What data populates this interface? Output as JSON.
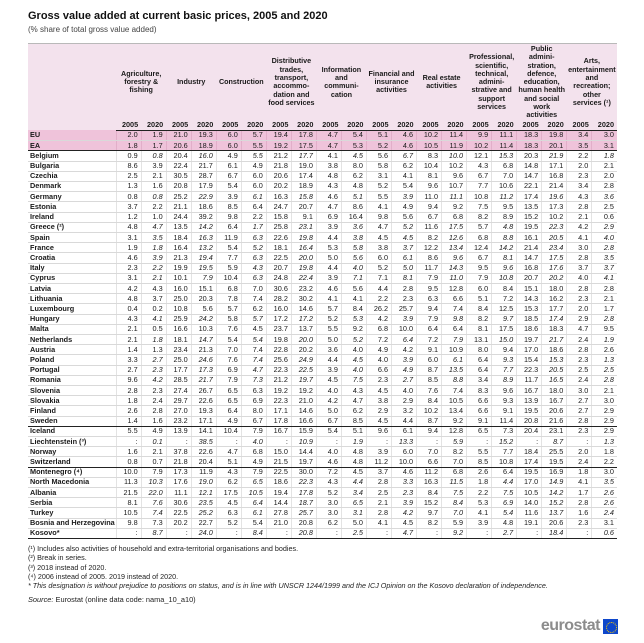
{
  "title": "Gross value added at current basic prices, 2005 and 2020",
  "subtitle": "(% share of total gross value added)",
  "year_headers": [
    "2005",
    "2020"
  ],
  "columns": [
    "Agriculture, forestry & fishing",
    "Industry",
    "Construction",
    "Distributive trades, transport, accommo­dation and food services",
    "Information and communi­cation",
    "Financial and insurance activities",
    "Real estate activities",
    "Professional, scientific, technical, admini­strative and support services",
    "Public admini­stration, defence, education, human health and social work activities",
    "Arts, entertain­ment and recreation; other services (¹)"
  ],
  "rows": [
    {
      "name": "EU",
      "highlight": true,
      "values": [
        "2.0",
        "1.9",
        "21.0",
        "19.3",
        "6.0",
        "5.7",
        "19.4",
        "17.8",
        "4.7",
        "5.4",
        "5.1",
        "4.6",
        "10.2",
        "11.4",
        "9.9",
        "11.1",
        "18.3",
        "19.8",
        "3.4",
        "3.0"
      ]
    },
    {
      "name": "EA",
      "highlight": true,
      "sep_after": true,
      "values": [
        "1.8",
        "1.7",
        "20.6",
        "18.9",
        "6.0",
        "5.5",
        "19.2",
        "17.5",
        "4.7",
        "5.3",
        "5.2",
        "4.6",
        "10.5",
        "11.9",
        "10.2",
        "11.4",
        "18.3",
        "20.1",
        "3.5",
        "3.1"
      ]
    },
    {
      "name": "Belgium",
      "italic2020": true,
      "values": [
        "0.9",
        "0.8",
        "20.4",
        "16.0",
        "4.9",
        "5.5",
        "21.2",
        "17.7",
        "4.1",
        "4.5",
        "5.6",
        "6.7",
        "8.3",
        "10.0",
        "12.1",
        "15.3",
        "20.3",
        "21.9",
        "2.2",
        "1.8"
      ]
    },
    {
      "name": "Bulgaria",
      "values": [
        "8.6",
        "3.9",
        "22.4",
        "21.7",
        "6.1",
        "4.9",
        "21.8",
        "19.0",
        "3.8",
        "8.0",
        "5.8",
        "6.2",
        "10.4",
        "10.2",
        "4.3",
        "6.8",
        "14.8",
        "17.1",
        "2.0",
        "2.1"
      ]
    },
    {
      "name": "Czechia",
      "values": [
        "2.5",
        "2.1",
        "30.5",
        "28.7",
        "6.7",
        "6.0",
        "20.6",
        "17.4",
        "4.8",
        "6.2",
        "3.1",
        "4.1",
        "8.1",
        "9.6",
        "6.7",
        "7.0",
        "14.7",
        "16.8",
        "2.3",
        "2.0"
      ]
    },
    {
      "name": "Denmark",
      "values": [
        "1.3",
        "1.6",
        "20.8",
        "17.9",
        "5.4",
        "6.0",
        "20.2",
        "18.9",
        "4.3",
        "4.8",
        "5.2",
        "5.4",
        "9.6",
        "10.7",
        "7.7",
        "10.6",
        "22.1",
        "21.4",
        "3.4",
        "2.8"
      ]
    },
    {
      "name": "Germany",
      "italic2020": true,
      "values": [
        "0.8",
        "0.8",
        "25.2",
        "22.9",
        "3.9",
        "6.1",
        "16.3",
        "15.8",
        "4.6",
        "5.1",
        "5.5",
        "3.9",
        "11.0",
        "11.1",
        "10.8",
        "11.2",
        "17.4",
        "19.6",
        "4.3",
        "3.6"
      ]
    },
    {
      "name": "Estonia",
      "values": [
        "3.7",
        "2.2",
        "21.1",
        "18.6",
        "8.5",
        "6.4",
        "24.7",
        "20.7",
        "4.7",
        "8.6",
        "4.1",
        "4.9",
        "9.4",
        "9.2",
        "7.5",
        "9.5",
        "13.5",
        "17.3",
        "2.8",
        "2.5"
      ]
    },
    {
      "name": "Ireland",
      "values": [
        "1.2",
        "1.0",
        "24.4",
        "39.2",
        "9.8",
        "2.2",
        "15.8",
        "9.1",
        "6.9",
        "16.4",
        "9.8",
        "5.6",
        "6.7",
        "6.8",
        "8.2",
        "8.9",
        "15.2",
        "10.2",
        "2.1",
        "0.6"
      ]
    },
    {
      "name": "Greece (²)",
      "italic2020": true,
      "values": [
        "4.8",
        "4.7",
        "13.5",
        "14.2",
        "6.4",
        "1.7",
        "25.8",
        "23.1",
        "3.9",
        "3.6",
        "4.7",
        "5.2",
        "11.6",
        "17.5",
        "5.7",
        "4.8",
        "19.5",
        "22.3",
        "4.2",
        "2.9"
      ]
    },
    {
      "name": "Spain",
      "italic2020": true,
      "values": [
        "3.1",
        "3.5",
        "18.4",
        "16.3",
        "11.9",
        "6.3",
        "22.6",
        "19.8",
        "4.4",
        "3.8",
        "4.5",
        "4.5",
        "8.2",
        "12.6",
        "6.8",
        "8.8",
        "16.1",
        "20.5",
        "4.1",
        "4.0"
      ]
    },
    {
      "name": "France",
      "italic2020": true,
      "values": [
        "1.9",
        "1.8",
        "16.4",
        "13.2",
        "5.4",
        "5.2",
        "18.1",
        "16.4",
        "5.3",
        "5.8",
        "3.8",
        "3.7",
        "12.2",
        "13.4",
        "12.4",
        "14.2",
        "21.4",
        "23.4",
        "3.0",
        "2.8"
      ]
    },
    {
      "name": "Croatia",
      "italic2020": true,
      "values": [
        "4.6",
        "3.9",
        "21.3",
        "19.4",
        "7.7",
        "6.3",
        "22.5",
        "20.0",
        "5.0",
        "5.6",
        "6.0",
        "6.1",
        "8.6",
        "9.6",
        "6.7",
        "8.1",
        "14.7",
        "17.5",
        "2.8",
        "3.5"
      ]
    },
    {
      "name": "Italy",
      "italic2020": true,
      "values": [
        "2.3",
        "2.2",
        "19.9",
        "19.5",
        "5.9",
        "4.3",
        "20.7",
        "19.8",
        "4.4",
        "4.0",
        "5.2",
        "5.0",
        "11.7",
        "14.3",
        "9.5",
        "9.6",
        "16.8",
        "17.6",
        "3.7",
        "3.7"
      ]
    },
    {
      "name": "Cyprus",
      "italic2020": true,
      "values": [
        "3.1",
        "2.1",
        "10.1",
        "7.9",
        "10.4",
        "6.3",
        "24.8",
        "22.4",
        "3.9",
        "7.1",
        "7.1",
        "8.1",
        "7.9",
        "11.0",
        "7.9",
        "10.8",
        "20.7",
        "20.2",
        "4.0",
        "4.1"
      ]
    },
    {
      "name": "Latvia",
      "values": [
        "4.2",
        "4.3",
        "16.0",
        "15.1",
        "6.8",
        "7.0",
        "30.6",
        "23.2",
        "4.6",
        "5.6",
        "4.4",
        "2.8",
        "9.5",
        "12.8",
        "6.0",
        "8.4",
        "15.1",
        "18.0",
        "2.8",
        "2.8"
      ]
    },
    {
      "name": "Lithuania",
      "values": [
        "4.8",
        "3.7",
        "25.0",
        "20.3",
        "7.8",
        "7.4",
        "28.2",
        "30.2",
        "4.1",
        "4.1",
        "2.2",
        "2.3",
        "6.3",
        "6.6",
        "5.1",
        "7.2",
        "14.3",
        "16.2",
        "2.3",
        "2.1"
      ]
    },
    {
      "name": "Luxembourg",
      "values": [
        "0.4",
        "0.2",
        "10.8",
        "5.6",
        "5.7",
        "6.2",
        "16.0",
        "14.6",
        "5.7",
        "8.4",
        "26.2",
        "25.7",
        "9.4",
        "7.4",
        "8.4",
        "12.5",
        "15.3",
        "17.7",
        "2.0",
        "1.7"
      ]
    },
    {
      "name": "Hungary",
      "italic2020": true,
      "values": [
        "4.3",
        "4.1",
        "25.9",
        "24.2",
        "5.8",
        "5.7",
        "17.2",
        "17.2",
        "5.2",
        "5.3",
        "4.2",
        "3.9",
        "7.9",
        "9.8",
        "8.2",
        "9.7",
        "18.5",
        "17.4",
        "2.9",
        "2.8"
      ]
    },
    {
      "name": "Malta",
      "values": [
        "2.1",
        "0.5",
        "16.6",
        "10.3",
        "7.6",
        "4.5",
        "23.7",
        "13.7",
        "5.5",
        "9.2",
        "6.8",
        "10.0",
        "6.4",
        "6.4",
        "8.1",
        "17.5",
        "18.6",
        "18.3",
        "4.7",
        "9.5"
      ]
    },
    {
      "name": "Netherlands",
      "italic2020": true,
      "values": [
        "2.1",
        "1.8",
        "18.1",
        "14.7",
        "5.4",
        "5.4",
        "19.8",
        "20.0",
        "5.0",
        "5.2",
        "7.2",
        "6.4",
        "7.2",
        "7.9",
        "13.1",
        "15.0",
        "19.7",
        "21.7",
        "2.4",
        "1.9"
      ]
    },
    {
      "name": "Austria",
      "values": [
        "1.4",
        "1.3",
        "23.4",
        "21.3",
        "7.0",
        "7.4",
        "22.8",
        "20.2",
        "3.6",
        "4.0",
        "4.9",
        "4.2",
        "9.1",
        "10.9",
        "8.0",
        "9.4",
        "17.0",
        "18.6",
        "2.8",
        "2.6"
      ]
    },
    {
      "name": "Poland",
      "italic2020": true,
      "values": [
        "3.3",
        "2.7",
        "25.0",
        "24.6",
        "7.6",
        "7.4",
        "25.6",
        "24.9",
        "4.4",
        "4.5",
        "4.0",
        "3.9",
        "6.0",
        "6.1",
        "6.4",
        "9.3",
        "15.4",
        "15.3",
        "2.3",
        "1.3"
      ]
    },
    {
      "name": "Portugal",
      "italic2020": true,
      "values": [
        "2.7",
        "2.3",
        "17.7",
        "17.3",
        "6.9",
        "4.7",
        "22.3",
        "22.5",
        "3.9",
        "4.0",
        "6.6",
        "4.9",
        "8.7",
        "13.5",
        "6.4",
        "7.7",
        "22.3",
        "20.5",
        "2.5",
        "2.5"
      ]
    },
    {
      "name": "Romania",
      "italic2020": true,
      "values": [
        "9.6",
        "4.2",
        "28.5",
        "21.7",
        "7.9",
        "7.3",
        "21.2",
        "19.7",
        "4.5",
        "7.5",
        "2.3",
        "2.7",
        "8.5",
        "8.8",
        "3.4",
        "8.9",
        "11.7",
        "16.5",
        "2.4",
        "2.8"
      ]
    },
    {
      "name": "Slovenia",
      "values": [
        "2.8",
        "2.3",
        "27.4",
        "26.7",
        "6.5",
        "6.3",
        "19.2",
        "19.2",
        "4.0",
        "4.3",
        "4.5",
        "4.0",
        "7.6",
        "7.4",
        "8.3",
        "9.6",
        "16.7",
        "18.0",
        "3.0",
        "2.1"
      ]
    },
    {
      "name": "Slovakia",
      "values": [
        "1.8",
        "2.4",
        "29.7",
        "22.6",
        "6.5",
        "6.9",
        "22.3",
        "21.0",
        "4.2",
        "4.7",
        "3.8",
        "2.9",
        "8.4",
        "10.5",
        "6.6",
        "9.3",
        "13.9",
        "16.7",
        "2.7",
        "3.0"
      ]
    },
    {
      "name": "Finland",
      "values": [
        "2.6",
        "2.8",
        "27.0",
        "19.3",
        "6.4",
        "8.0",
        "17.1",
        "14.6",
        "5.0",
        "6.2",
        "2.9",
        "3.2",
        "10.2",
        "13.4",
        "6.6",
        "9.1",
        "19.5",
        "20.6",
        "2.7",
        "2.9"
      ]
    },
    {
      "name": "Sweden",
      "sep_after": true,
      "values": [
        "1.4",
        "1.6",
        "23.2",
        "17.1",
        "4.9",
        "6.7",
        "17.8",
        "16.6",
        "6.7",
        "8.5",
        "4.5",
        "4.4",
        "8.7",
        "9.2",
        "9.1",
        "11.4",
        "20.8",
        "21.6",
        "2.8",
        "2.9"
      ]
    },
    {
      "name": "Iceland",
      "values": [
        "5.5",
        "4.9",
        "13.9",
        "14.1",
        "10.4",
        "7.9",
        "16.7",
        "15.9",
        "5.4",
        "5.1",
        "9.6",
        "6.1",
        "9.4",
        "12.8",
        "6.5",
        "7.3",
        "20.4",
        "23.1",
        "2.3",
        "2.9"
      ]
    },
    {
      "name": "Liechtenstein (³)",
      "italic2020": true,
      "values": [
        ":",
        "0.1",
        ":",
        "38.5",
        ":",
        "4.0",
        ":",
        "10.9",
        ":",
        "1.9",
        ":",
        "13.3",
        ":",
        "5.9",
        ":",
        "15.2",
        ":",
        "8.7",
        ":",
        "1.3"
      ]
    },
    {
      "name": "Norway",
      "values": [
        "1.6",
        "2.1",
        "37.8",
        "22.6",
        "4.7",
        "6.8",
        "15.0",
        "14.4",
        "4.0",
        "4.8",
        "3.9",
        "6.0",
        "7.0",
        "8.2",
        "5.5",
        "7.7",
        "18.4",
        "25.5",
        "2.0",
        "1.8"
      ]
    },
    {
      "name": "Switzerland",
      "sep_after": true,
      "values": [
        "0.8",
        "0.7",
        "21.8",
        "20.4",
        "5.1",
        "4.9",
        "21.5",
        "19.7",
        "4.6",
        "4.8",
        "11.2",
        "10.0",
        "6.6",
        "7.0",
        "8.5",
        "10.8",
        "17.4",
        "19.5",
        "2.4",
        "2.2"
      ]
    },
    {
      "name": "Montenegro (⁴)",
      "values": [
        "10.0",
        "7.9",
        "17.3",
        "11.9",
        "4.3",
        "7.9",
        "22.5",
        "30.0",
        "7.2",
        "4.5",
        "3.7",
        "4.6",
        "11.2",
        "6.8",
        "2.6",
        "6.4",
        "19.5",
        "16.9",
        "1.8",
        "3.0"
      ]
    },
    {
      "name": "North Macedonia",
      "italic2020": true,
      "values": [
        "11.3",
        "10.3",
        "17.6",
        "19.0",
        "6.2",
        "6.5",
        "18.6",
        "22.3",
        "4.3",
        "4.4",
        "2.8",
        "3.3",
        "16.3",
        "11.5",
        "1.8",
        "4.4",
        "17.0",
        "14.9",
        "4.1",
        "3.5"
      ]
    },
    {
      "name": "Albania",
      "italic2020": true,
      "values": [
        "21.5",
        "22.0",
        "11.1",
        "12.1",
        "17.5",
        "10.5",
        "19.4",
        "17.8",
        "5.2",
        "3.4",
        "2.5",
        "2.3",
        "8.4",
        "7.5",
        "2.2",
        "7.5",
        "10.5",
        "14.2",
        "1.7",
        "2.6"
      ]
    },
    {
      "name": "Serbia",
      "italic2020": true,
      "values": [
        "8.1",
        "7.6",
        "30.6",
        "23.5",
        "4.5",
        "6.4",
        "14.4",
        "18.7",
        "3.0",
        "6.5",
        "2.1",
        "3.9",
        "15.2",
        "8.4",
        "5.3",
        "6.9",
        "14.0",
        "15.2",
        "2.8",
        "2.6"
      ]
    },
    {
      "name": "Turkey",
      "italic2020": true,
      "values": [
        "10.5",
        "7.4",
        "22.5",
        "25.2",
        "6.3",
        "6.1",
        "27.8",
        "25.7",
        "3.0",
        "3.1",
        "2.8",
        "4.2",
        "9.7",
        "7.0",
        "4.1",
        "5.4",
        "11.6",
        "13.7",
        "1.6",
        "2.4"
      ]
    },
    {
      "name": "Bosnia and Herzegovina",
      "values": [
        "9.8",
        "7.3",
        "20.2",
        "22.7",
        "5.2",
        "5.4",
        "21.0",
        "20.8",
        "6.2",
        "5.0",
        "4.1",
        "4.5",
        "8.2",
        "5.9",
        "3.9",
        "4.8",
        "19.1",
        "20.6",
        "2.3",
        "3.1"
      ]
    },
    {
      "name": "Kosovo*",
      "italic2020": true,
      "values": [
        ":",
        "8.7",
        ":",
        "24.0",
        ":",
        "8.4",
        ":",
        "20.8",
        ":",
        "2.5",
        ":",
        "4.7",
        ":",
        "9.2",
        ":",
        "2.7",
        ":",
        "18.4",
        ":",
        "0.6"
      ]
    }
  ],
  "footnotes": [
    {
      "text": "(¹) Includes also activities of household and extra-territorial organisations and bodies.",
      "italic": false
    },
    {
      "text": "(²) Break in series.",
      "italic": false
    },
    {
      "text": "(³) 2018 instead of 2020.",
      "italic": false
    },
    {
      "text": "(⁴) 2006 instead of 2005. 2019 instead of 2020.",
      "italic": false
    },
    {
      "text": "* This designation is without prejudice to positions on status, and is in line with UNSCR 1244/1999 and the ICJ Opinion on the Kosovo declaration of independence.",
      "italic": true
    }
  ],
  "source": {
    "label": "Source:",
    "text": " Eurostat (online data code: nama_10_a10)"
  },
  "logo": {
    "word": "eurostat"
  },
  "colors": {
    "header_bg": "#f3e2ed",
    "highlight_bg": "#efc3da",
    "logo_blue": "#0e47cb",
    "logo_gray": "#8c8c8c"
  }
}
